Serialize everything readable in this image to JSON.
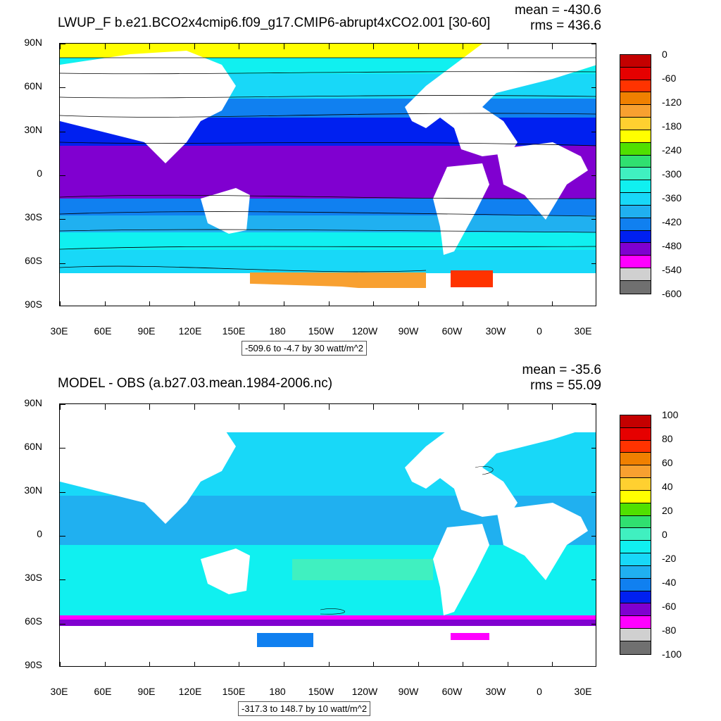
{
  "top_panel": {
    "title": "LWUP_F b.e21.BCO2x4cmip6.f09_g17.CMIP6-abrupt4xCO2.001 [30-60]",
    "mean": "mean = -430.6",
    "rms": "rms = 436.6",
    "range_text": "-509.6 to -4.7 by 30 watt/m^2",
    "colorbar_labels": [
      "0",
      "-60",
      "-120",
      "-180",
      "-240",
      "-300",
      "-360",
      "-420",
      "-480",
      "-540",
      "-600"
    ]
  },
  "bottom_panel": {
    "title": "MODEL - OBS (a.b27.03.mean.1984-2006.nc)",
    "mean": "mean = -35.6",
    "rms": "rms = 55.09",
    "range_text": "-317.3 to 148.7 by 10 watt/m^2",
    "colorbar_labels": [
      "100",
      "80",
      "60",
      "40",
      "20",
      "0",
      "-20",
      "-40",
      "-60",
      "-80",
      "-100"
    ]
  },
  "lat_labels": [
    "90N",
    "60N",
    "30N",
    "0",
    "30S",
    "60S",
    "90S"
  ],
  "lon_labels": [
    "30E",
    "60E",
    "90E",
    "120E",
    "150E",
    "180",
    "150W",
    "120W",
    "90W",
    "60W",
    "30W",
    "0",
    "30E"
  ],
  "colorbar_colors": [
    "#c40000",
    "#e60000",
    "#ff3300",
    "#f08000",
    "#f8a030",
    "#ffd030",
    "#ffff00",
    "#50e000",
    "#30e070",
    "#40f0c0",
    "#10f0f0",
    "#18d8f8",
    "#20b0f0",
    "#1080f0",
    "#0020f0",
    "#8000d0",
    "#ff00ff",
    "#d0d0d0",
    "#707070"
  ],
  "land_color": "#ffffff"
}
